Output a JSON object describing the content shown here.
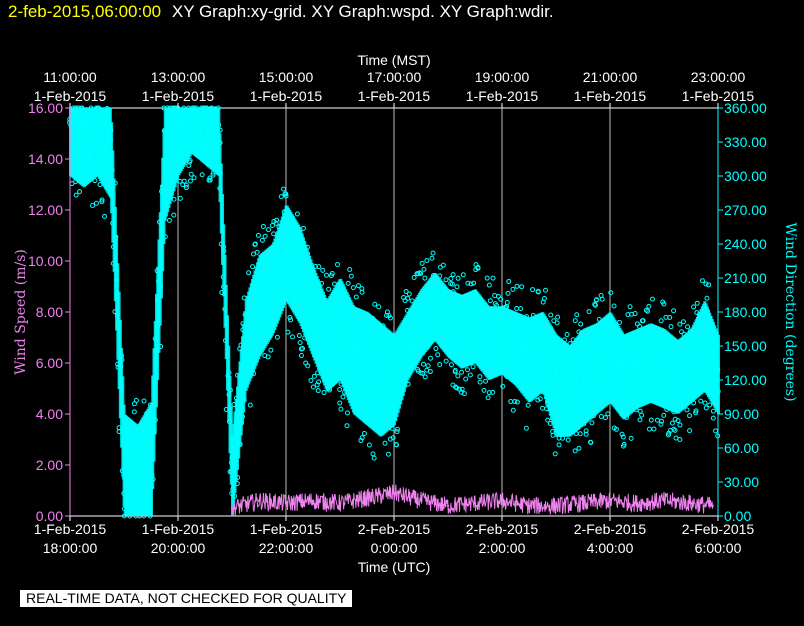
{
  "header": {
    "date": "2-feb-2015,06:00:00",
    "titles": "XY Graph:xy-grid.  XY Graph:wspd.  XY Graph:wdir."
  },
  "disclaimer": "REAL-TIME DATA, NOT CHECKED FOR QUALITY",
  "chart_data": {
    "type": "scatter",
    "top_axis": {
      "label": "Time (MST)",
      "ticks": [
        {
          "time": "11:00:00",
          "date": "1-Feb-2015"
        },
        {
          "time": "13:00:00",
          "date": "1-Feb-2015"
        },
        {
          "time": "15:00:00",
          "date": "1-Feb-2015"
        },
        {
          "time": "17:00:00",
          "date": "1-Feb-2015"
        },
        {
          "time": "19:00:00",
          "date": "1-Feb-2015"
        },
        {
          "time": "21:00:00",
          "date": "1-Feb-2015"
        },
        {
          "time": "23:00:00",
          "date": "1-Feb-2015"
        }
      ]
    },
    "bottom_axis": {
      "label": "Time (UTC)",
      "range_hours": [
        0,
        12
      ],
      "ticks": [
        {
          "date": "1-Feb-2015",
          "time": "18:00:00"
        },
        {
          "date": "1-Feb-2015",
          "time": "20:00:00"
        },
        {
          "date": "1-Feb-2015",
          "time": "22:00:00"
        },
        {
          "date": "2-Feb-2015",
          "time": "0:00:00"
        },
        {
          "date": "2-Feb-2015",
          "time": "2:00:00"
        },
        {
          "date": "2-Feb-2015",
          "time": "4:00:00"
        },
        {
          "date": "2-Feb-2015",
          "time": "6:00:00"
        }
      ]
    },
    "left_axis": {
      "label": "Wind Speed (m/s)",
      "range": [
        0,
        16
      ],
      "ticks": [
        "0.00",
        "2.00",
        "4.00",
        "6.00",
        "8.00",
        "10.00",
        "12.00",
        "14.00",
        "16.00"
      ],
      "color": "#ee82ee"
    },
    "right_axis": {
      "label": "Wind Direction (degrees)",
      "range": [
        0,
        360
      ],
      "ticks": [
        "0.00",
        "30.00",
        "60.00",
        "90.00",
        "120.00",
        "150.00",
        "180.00",
        "210.00",
        "240.00",
        "270.00",
        "300.00",
        "330.00",
        "360.00"
      ],
      "color": "#00ffff"
    },
    "grid": "vertical",
    "series": [
      {
        "label": "wspd",
        "style": "line",
        "color": "#ee82ee",
        "x": [
          3.0,
          3.5,
          4.0,
          4.5,
          5.0,
          5.5,
          6.0,
          6.5,
          7.0,
          7.5,
          8.0,
          8.5,
          9.0,
          9.5,
          10.0,
          10.5,
          11.0,
          11.5,
          11.9
        ],
        "y": [
          0.3,
          0.6,
          0.5,
          0.6,
          0.5,
          0.7,
          0.9,
          0.6,
          0.4,
          0.5,
          0.6,
          0.4,
          0.4,
          0.5,
          0.6,
          0.5,
          0.6,
          0.5,
          0.4
        ]
      },
      {
        "label": "wdir",
        "style": "points",
        "color": "#00ffff",
        "x": [
          0,
          0.25,
          0.5,
          0.75,
          1.0,
          1.25,
          1.5,
          1.75,
          2.0,
          2.25,
          2.5,
          2.75,
          3.0,
          3.25,
          3.5,
          3.75,
          4.0,
          4.25,
          4.5,
          4.75,
          5.0,
          5.25,
          5.5,
          5.75,
          6.0,
          6.25,
          6.5,
          6.75,
          7.0,
          7.25,
          7.5,
          7.75,
          8.0,
          8.25,
          8.5,
          8.75,
          9.0,
          9.25,
          9.5,
          9.75,
          10.0,
          10.25,
          10.5,
          10.75,
          11.0,
          11.25,
          11.5,
          11.75,
          12.0
        ],
        "y": [
          350,
          345,
          352,
          340,
          20,
          15,
          25,
          340,
          348,
          355,
          350,
          345,
          20,
          150,
          190,
          200,
          235,
          215,
          185,
          160,
          170,
          150,
          140,
          120,
          120,
          150,
          170,
          195,
          175,
          165,
          170,
          155,
          160,
          150,
          140,
          150,
          120,
          110,
          125,
          130,
          140,
          125,
          130,
          135,
          130,
          120,
          130,
          150,
          110
        ],
        "band_low": [
          300,
          290,
          300,
          280,
          0,
          0,
          0,
          260,
          300,
          320,
          310,
          300,
          0,
          110,
          140,
          160,
          190,
          170,
          140,
          110,
          120,
          90,
          80,
          70,
          80,
          120,
          140,
          155,
          140,
          130,
          135,
          120,
          125,
          115,
          100,
          110,
          70,
          70,
          80,
          90,
          100,
          85,
          95,
          100,
          95,
          90,
          100,
          110,
          90
        ],
        "band_high": [
          360,
          360,
          360,
          360,
          90,
          80,
          100,
          360,
          360,
          360,
          360,
          360,
          70,
          190,
          230,
          240,
          275,
          255,
          220,
          190,
          210,
          185,
          180,
          170,
          160,
          180,
          200,
          215,
          200,
          195,
          200,
          185,
          185,
          180,
          175,
          180,
          160,
          150,
          165,
          170,
          180,
          160,
          165,
          170,
          165,
          155,
          165,
          190,
          160
        ]
      }
    ]
  }
}
